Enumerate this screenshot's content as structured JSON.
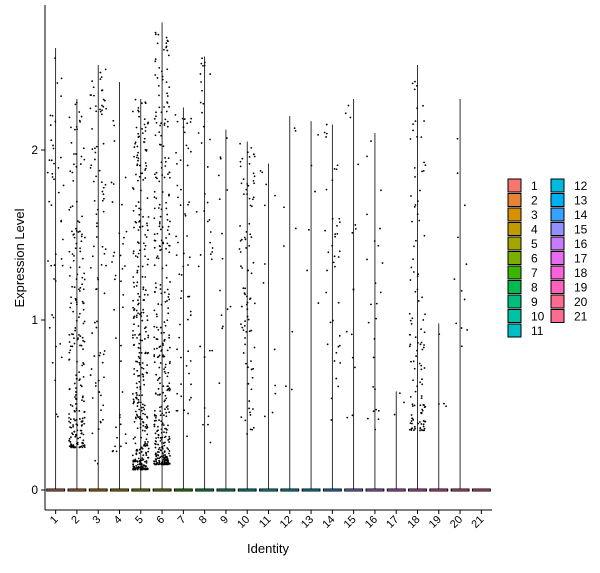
{
  "chart_data": {
    "type": "violin",
    "title": "",
    "xlabel": "Identity",
    "ylabel": "Expression Level",
    "ylim": [
      -0.12,
      2.85
    ],
    "yticks": [
      0,
      1,
      2
    ],
    "grid": false,
    "legend_position": "right",
    "categories": [
      "1",
      "2",
      "3",
      "4",
      "5",
      "6",
      "7",
      "8",
      "9",
      "10",
      "11",
      "12",
      "13",
      "14",
      "15",
      "16",
      "17",
      "18",
      "19",
      "20",
      "21"
    ],
    "colors": [
      "#F8766D",
      "#EA8331",
      "#D89000",
      "#C09B00",
      "#A3A500",
      "#7CAE00",
      "#39B600",
      "#00BB4E",
      "#00BF7D",
      "#00C1A3",
      "#00BFC4",
      "#00BAE0",
      "#00B0F6",
      "#35A2FF",
      "#9590FF",
      "#C77CFF",
      "#E76BF3",
      "#FA62DB",
      "#FF62BC",
      "#FF6C91",
      "#FF6C91"
    ],
    "max_values": [
      2.6,
      2.3,
      2.5,
      2.4,
      2.3,
      2.75,
      2.25,
      2.55,
      2.12,
      2.05,
      1.92,
      2.2,
      2.17,
      2.15,
      2.3,
      2.1,
      0.58,
      2.5,
      0.98,
      2.3,
      0.0
    ],
    "point_counts": [
      45,
      220,
      90,
      40,
      360,
      380,
      60,
      40,
      15,
      90,
      12,
      8,
      6,
      40,
      15,
      25,
      3,
      120,
      4,
      12,
      0
    ],
    "point_ranges": [
      [
        0.4,
        2.6
      ],
      [
        0.25,
        2.3
      ],
      [
        0.15,
        2.5
      ],
      [
        0.2,
        2.4
      ],
      [
        0.12,
        2.3
      ],
      [
        0.15,
        2.75
      ],
      [
        0.3,
        2.25
      ],
      [
        0.22,
        2.55
      ],
      [
        0.4,
        2.12
      ],
      [
        0.3,
        2.05
      ],
      [
        0.4,
        1.92
      ],
      [
        0.55,
        2.2
      ],
      [
        0.3,
        2.17
      ],
      [
        0.4,
        2.15
      ],
      [
        0.4,
        2.3
      ],
      [
        0.3,
        2.1
      ],
      [
        0.4,
        0.58
      ],
      [
        0.35,
        2.5
      ],
      [
        0.4,
        0.98
      ],
      [
        0.75,
        2.3
      ],
      [
        0,
        0
      ]
    ],
    "legend": {
      "col1": [
        "1",
        "2",
        "3",
        "4",
        "5",
        "6",
        "7",
        "8",
        "9",
        "10",
        "11"
      ],
      "col2": [
        "12",
        "13",
        "14",
        "15",
        "16",
        "17",
        "18",
        "19",
        "20",
        "21"
      ]
    }
  }
}
